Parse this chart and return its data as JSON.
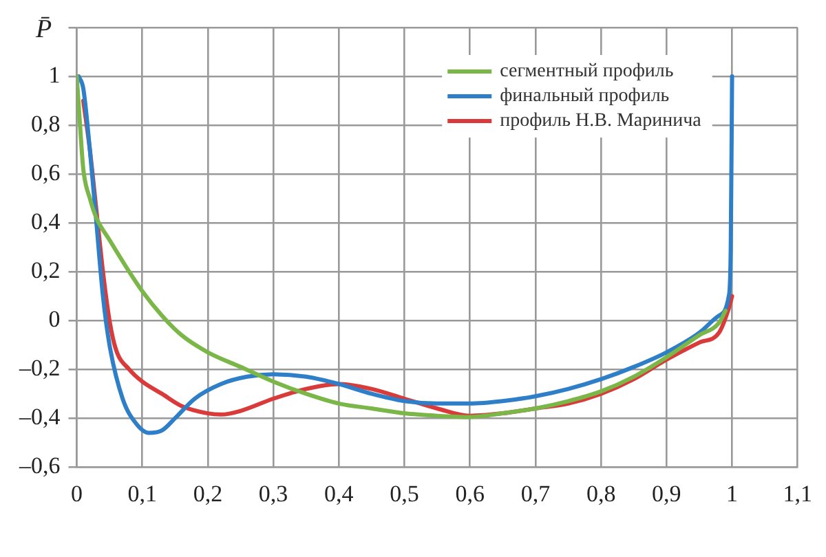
{
  "chart_data": {
    "type": "line",
    "ylabel": "P̄",
    "legend": "top right",
    "grid": true,
    "marker": "none",
    "line_style": "solid",
    "xlim": [
      0,
      1.1
    ],
    "xticks": [
      0,
      {
        "value": 0.1,
        "label": "0,1"
      },
      {
        "value": 0.2,
        "label": "0,2"
      },
      {
        "value": 0.3,
        "label": "0,3"
      },
      {
        "value": 0.4,
        "label": "0,4"
      },
      {
        "value": 0.5,
        "label": "0,5"
      },
      {
        "value": 0.6,
        "label": "0,6"
      },
      {
        "value": 0.7,
        "label": "0,7"
      },
      {
        "value": 0.8,
        "label": "0,8"
      },
      {
        "value": 0.9,
        "label": "0,9"
      },
      1,
      {
        "value": 1.1,
        "label": "1,1"
      }
    ],
    "ylim": [
      -0.6,
      1.2
    ],
    "yticks": [
      {
        "value": -0.6,
        "label": "–0,6"
      },
      {
        "value": -0.4,
        "label": "–0,4"
      },
      {
        "value": -0.2,
        "label": "–0,2"
      },
      0,
      {
        "value": 0.2,
        "label": "0,2"
      },
      {
        "value": 0.4,
        "label": "0,4"
      },
      {
        "value": 0.6,
        "label": "0,6"
      },
      {
        "value": 0.8,
        "label": "0,8"
      },
      1,
      {
        "value": 1.2,
        "label": null
      }
    ],
    "series": [
      {
        "name": "сегментный профиль",
        "color": "#7ab648",
        "x": [
          0,
          0.005,
          0.01,
          0.02,
          0.03,
          0.05,
          0.08,
          0.1,
          0.13,
          0.16,
          0.2,
          0.25,
          0.3,
          0.35,
          0.4,
          0.45,
          0.5,
          0.55,
          0.6,
          0.65,
          0.7,
          0.75,
          0.8,
          0.85,
          0.9,
          0.95,
          0.98,
          0.99
        ],
        "values": [
          1,
          0.8,
          0.62,
          0.5,
          0.42,
          0.33,
          0.2,
          0.12,
          0.02,
          -0.06,
          -0.13,
          -0.19,
          -0.25,
          -0.3,
          -0.34,
          -0.36,
          -0.38,
          -0.39,
          -0.395,
          -0.38,
          -0.36,
          -0.33,
          -0.29,
          -0.23,
          -0.15,
          -0.06,
          -0.01,
          0.04
        ]
      },
      {
        "name": "финальный профиль",
        "color": "#2e7ec8",
        "x": [
          0.003,
          0.01,
          0.02,
          0.03,
          0.04,
          0.05,
          0.07,
          0.09,
          0.11,
          0.13,
          0.15,
          0.18,
          0.22,
          0.26,
          0.3,
          0.35,
          0.4,
          0.45,
          0.5,
          0.55,
          0.6,
          0.65,
          0.7,
          0.75,
          0.8,
          0.85,
          0.9,
          0.95,
          0.98,
          0.995,
          0.998,
          1
        ],
        "values": [
          1,
          0.95,
          0.7,
          0.4,
          0.1,
          -0.1,
          -0.32,
          -0.42,
          -0.46,
          -0.45,
          -0.4,
          -0.32,
          -0.26,
          -0.23,
          -0.22,
          -0.23,
          -0.26,
          -0.3,
          -0.33,
          -0.34,
          -0.34,
          -0.33,
          -0.31,
          -0.28,
          -0.24,
          -0.19,
          -0.13,
          -0.05,
          0.02,
          0.1,
          0.3,
          1
        ]
      },
      {
        "name": "профиль Н.В. Маринича",
        "color": "#d93a3a",
        "x": [
          0.01,
          0.02,
          0.03,
          0.04,
          0.05,
          0.06,
          0.08,
          0.1,
          0.13,
          0.16,
          0.2,
          0.22,
          0.25,
          0.3,
          0.35,
          0.4,
          0.45,
          0.5,
          0.55,
          0.6,
          0.65,
          0.7,
          0.75,
          0.8,
          0.85,
          0.9,
          0.95,
          0.98,
          0.995,
          1
        ],
        "values": [
          0.9,
          0.7,
          0.45,
          0.2,
          0,
          -0.12,
          -0.2,
          -0.25,
          -0.3,
          -0.35,
          -0.38,
          -0.385,
          -0.37,
          -0.32,
          -0.28,
          -0.26,
          -0.28,
          -0.32,
          -0.36,
          -0.39,
          -0.38,
          -0.36,
          -0.34,
          -0.3,
          -0.24,
          -0.16,
          -0.09,
          -0.05,
          0.05,
          0.1
        ]
      }
    ]
  }
}
